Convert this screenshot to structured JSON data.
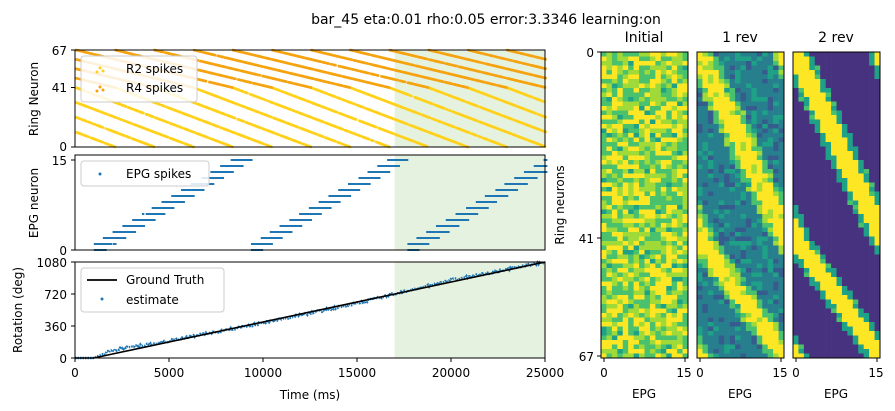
{
  "title": "bar_45 eta:0.01 rho:0.05 error:3.3346 learning:on",
  "colors": {
    "r2": "#ffd11a",
    "r4": "#f5a30f",
    "epg": "#1f77b4",
    "truth": "#000000",
    "estimate": "#1f77b4",
    "learning_region": "#e6f2e0"
  },
  "chart_data": [
    {
      "id": "ring",
      "type": "scatter",
      "ylabel": "Ring Neuron",
      "xlim": [
        0,
        25000
      ],
      "ylim": [
        0,
        67
      ],
      "yticks": [
        "0",
        "41",
        "67"
      ],
      "learning_region": [
        17000,
        25000
      ],
      "legend": {
        "placement": "upper-left",
        "entries": [
          "R2 spikes",
          "R4 spikes"
        ]
      },
      "series": [
        {
          "name": "R2 spikes",
          "period_ms": 8333,
          "y_range": [
            0,
            41
          ],
          "y_start": 41
        },
        {
          "name": "R4 spikes",
          "period_ms": 8333,
          "y_range": [
            41,
            67
          ],
          "y_start": 67
        }
      ]
    },
    {
      "id": "epg",
      "type": "scatter",
      "ylabel": "EPG neuron",
      "xlim": [
        0,
        25000
      ],
      "ylim": [
        0,
        15
      ],
      "yticks": [
        "0",
        "15"
      ],
      "learning_region": [
        17000,
        25000
      ],
      "legend": {
        "placement": "upper-left",
        "entries": [
          "EPG spikes"
        ]
      },
      "series": [
        {
          "name": "EPG spikes",
          "period_ms": 8333,
          "y_range": [
            0,
            15
          ],
          "start_ms": 1000
        }
      ]
    },
    {
      "id": "rotation",
      "type": "line",
      "ylabel": "Rotation (deg)",
      "xlabel": "Time (ms)",
      "xlim": [
        0,
        25000
      ],
      "ylim": [
        0,
        1080
      ],
      "xticks": [
        "0",
        "5000",
        "10000",
        "15000",
        "20000",
        "25000"
      ],
      "yticks": [
        "0",
        "360",
        "720",
        "1080"
      ],
      "learning_region": [
        17000,
        25000
      ],
      "legend": {
        "placement": "upper-left",
        "entries": [
          "Ground Truth",
          "estimate"
        ]
      },
      "series": [
        {
          "name": "Ground Truth",
          "x": [
            0,
            1000,
            25000
          ],
          "y": [
            0,
            0,
            1080
          ]
        },
        {
          "name": "estimate",
          "x": [
            0,
            1000,
            2000,
            5000,
            10000,
            15000,
            20000,
            25000
          ],
          "y": [
            0,
            0,
            90,
            190,
            395,
            615,
            875,
            1080
          ]
        }
      ]
    },
    {
      "id": "heatmaps",
      "type": "heatmap",
      "ylabel": "Ring neurons",
      "yticks": [
        "0",
        "41",
        "67"
      ],
      "panels": [
        {
          "title": "Initial",
          "xlabel": "EPG",
          "xticks": [
            "0",
            "15"
          ]
        },
        {
          "title": "1 rev",
          "xlabel": "EPG",
          "xticks": [
            "0",
            "15"
          ]
        },
        {
          "title": "2 rev",
          "xlabel": "EPG",
          "xticks": [
            "0",
            "15"
          ]
        }
      ],
      "rows": 68,
      "cols": 16
    }
  ]
}
